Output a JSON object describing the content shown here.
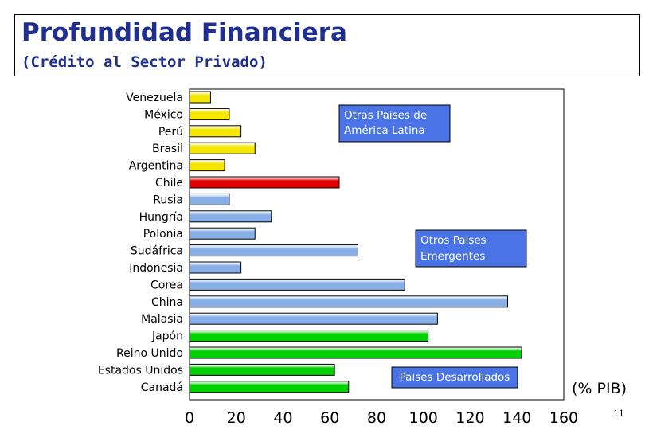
{
  "header": {
    "title": "Profundidad Financiera",
    "subtitle": "(Crédito al Sector Privado)"
  },
  "footer": {
    "page_number": "11"
  },
  "colors": {
    "latam": "#f5e600",
    "chile": "#e00000",
    "emerging": "#88b0e6",
    "developed": "#00d000",
    "box_fill": "#4a74e6",
    "box_text": "#ffffff"
  },
  "chart_data": {
    "type": "bar",
    "orientation": "horizontal",
    "categories": [
      "Venezuela",
      "México",
      "Perú",
      "Brasil",
      "Argentina",
      "Chile",
      "Rusia",
      "Hungría",
      "Polonia",
      "Sudáfrica",
      "Indonesia",
      "Corea",
      "China",
      "Malasia",
      "Japón",
      "Reino Unido",
      "Estados Unidos",
      "Canadá"
    ],
    "values": [
      9,
      17,
      22,
      28,
      15,
      64,
      17,
      35,
      28,
      72,
      22,
      92,
      136,
      106,
      102,
      142,
      62,
      68
    ],
    "groups": [
      "latam",
      "latam",
      "latam",
      "latam",
      "latam",
      "chile",
      "emerging",
      "emerging",
      "emerging",
      "emerging",
      "emerging",
      "emerging",
      "emerging",
      "emerging",
      "developed",
      "developed",
      "developed",
      "developed"
    ],
    "xlim": [
      0,
      160
    ],
    "xticks": [
      "0",
      "20",
      "40",
      "60",
      "80",
      "100",
      "120",
      "140",
      "160"
    ],
    "xlabel": "(% PIB)",
    "grid": false,
    "annotations": [
      {
        "text_lines": [
          "Otras Paises de",
          "América Latina"
        ]
      },
      {
        "text_lines": [
          "Otros Paises",
          "Emergentes"
        ]
      },
      {
        "text_lines": [
          "Paises Desarrollados"
        ]
      }
    ]
  }
}
